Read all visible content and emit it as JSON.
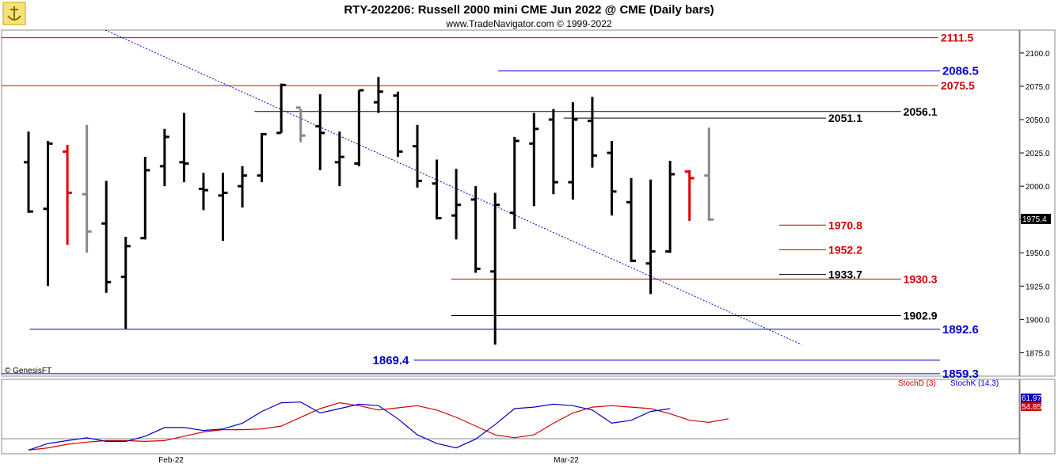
{
  "header": {
    "title": "RTY-202206:  Russell 2000 mini CME Jun 2022 @ CME  (Daily bars)",
    "subtitle": "www.TradeNavigator.com © 1999-2022",
    "watermark": "© GenesisFT"
  },
  "colors": {
    "bar": "#000000",
    "bar_last": "#e00000",
    "bar_gray": "#888888",
    "red_level": "#d40000",
    "blue_level": "#0000c8",
    "black_level": "#000000",
    "stoch_d": "#d40000",
    "stoch_k": "#0000c8",
    "trend": "#0000c8"
  },
  "chart_data": [
    {
      "type": "ohlc",
      "title": "RTY-202206:  Russell 2000 mini CME Jun 2022 @ CME  (Daily bars)",
      "y_axis": {
        "ticks": [
          "2100.0",
          "2075.0",
          "2050.0",
          "2025.0",
          "2000.0",
          "1975.0",
          "1950.0",
          "1925.0",
          "1900.0",
          "1875.0"
        ],
        "ylim": [
          1858,
          2116
        ],
        "last_price": "1975.4"
      },
      "x_axis": {
        "ticks": [
          "Feb-22",
          "Mar-22"
        ]
      },
      "bars": [
        {
          "o": 2018,
          "h": 2041,
          "l": 1980,
          "c": 1981
        },
        {
          "o": 1983,
          "h": 2034,
          "l": 1925,
          "c": 2032
        },
        {
          "o": 2026,
          "h": 2031,
          "l": 1956,
          "c": 1995
        },
        {
          "o": 1994,
          "h": 2046,
          "l": 1950,
          "c": 1966
        },
        {
          "o": 1972,
          "h": 2004,
          "l": 1920,
          "c": 1928
        },
        {
          "o": 1932,
          "h": 1962,
          "l": 1893,
          "c": 1955
        },
        {
          "o": 1961,
          "h": 2022,
          "l": 1960,
          "c": 2012
        },
        {
          "o": 2015,
          "h": 2043,
          "l": 2000,
          "c": 2037
        },
        {
          "o": 2018,
          "h": 2055,
          "l": 2003,
          "c": 2017
        },
        {
          "o": 1998,
          "h": 2010,
          "l": 1982,
          "c": 1997
        },
        {
          "o": 1993,
          "h": 2010,
          "l": 1959,
          "c": 1995
        },
        {
          "o": 2000,
          "h": 2015,
          "l": 1984,
          "c": 2008
        },
        {
          "o": 2008,
          "h": 2040,
          "l": 2003,
          "c": 2039
        },
        {
          "o": 2040,
          "h": 2077,
          "l": 2040,
          "c": 2076
        },
        {
          "o": 2059,
          "h": 2058,
          "l": 2033,
          "c": 2038
        },
        {
          "o": 2045,
          "h": 2069,
          "l": 2012,
          "c": 2040
        },
        {
          "o": 2018,
          "h": 2041,
          "l": 2000,
          "c": 2022
        },
        {
          "o": 2017,
          "h": 2072,
          "l": 2015,
          "c": 2072
        },
        {
          "o": 2063,
          "h": 2082,
          "l": 2055,
          "c": 2071
        },
        {
          "o": 2068,
          "h": 2071,
          "l": 2022,
          "c": 2026
        },
        {
          "o": 2030,
          "h": 2046,
          "l": 1999,
          "c": 2004
        },
        {
          "o": 2002,
          "h": 2020,
          "l": 1975,
          "c": 1976
        },
        {
          "o": 1978,
          "h": 2013,
          "l": 1960,
          "c": 1986
        },
        {
          "o": 1990,
          "h": 2000,
          "l": 1935,
          "c": 1938
        },
        {
          "o": 1936,
          "h": 1995,
          "l": 1881,
          "c": 1986
        },
        {
          "o": 1980,
          "h": 2037,
          "l": 1968,
          "c": 2034
        },
        {
          "o": 2032,
          "h": 2055,
          "l": 1985,
          "c": 2043
        },
        {
          "o": 2050,
          "h": 2058,
          "l": 1994,
          "c": 2003
        },
        {
          "o": 2003,
          "h": 2063,
          "l": 1990,
          "c": 2050
        },
        {
          "o": 2049,
          "h": 2067,
          "l": 2014,
          "c": 2023
        },
        {
          "o": 2025,
          "h": 2034,
          "l": 1978,
          "c": 1996
        },
        {
          "o": 1988,
          "h": 2006,
          "l": 1943,
          "c": 1944
        },
        {
          "o": 1942,
          "h": 2005,
          "l": 1919,
          "c": 1951
        },
        {
          "o": 1951,
          "h": 2019,
          "l": 1950,
          "c": 2009
        },
        {
          "o": 2011,
          "h": 2012,
          "l": 1974,
          "c": 2006
        },
        {
          "o": 2008,
          "h": 2044,
          "l": 1974,
          "c": 1975
        }
      ],
      "levels": [
        {
          "value": 2111.5,
          "label": "2111.5",
          "color": "red",
          "x0": 0,
          "x1": 1
        },
        {
          "value": 2086.5,
          "label": "2086.5",
          "color": "blue",
          "x0": 0.53,
          "x1": 1.1
        },
        {
          "value": 2075.5,
          "label": "2075.5",
          "color": "red",
          "x0": 0,
          "x1": 1
        },
        {
          "value": 2056.1,
          "label": "2056.1",
          "color": "black",
          "x0": 0.27,
          "x1": 0.96
        },
        {
          "value": 2051.1,
          "label": "2051.1",
          "color": "black",
          "x0": 0.6,
          "x1": 0.88
        },
        {
          "value": 1970.8,
          "label": "1970.8",
          "color": "red",
          "x0": 0.83,
          "x1": 0.88
        },
        {
          "value": 1952.2,
          "label": "1952.2",
          "color": "red",
          "x0": 0.83,
          "x1": 0.88
        },
        {
          "value": 1933.7,
          "label": "1933.7",
          "color": "black",
          "x0": 0.83,
          "x1": 0.88
        },
        {
          "value": 1930.3,
          "label": "1930.3",
          "color": "red",
          "x0": 0.48,
          "x1": 0.96
        },
        {
          "value": 1902.9,
          "label": "1902.9",
          "color": "black",
          "x0": 0.48,
          "x1": 0.96
        },
        {
          "value": 1892.6,
          "label": "1892.6",
          "color": "blue",
          "x0": 0.03,
          "x1": 1.1
        },
        {
          "value": 1869.4,
          "label": "1869.4",
          "color": "blue",
          "x0": 0.44,
          "x1": 1.1
        },
        {
          "value": 1859.3,
          "label": "1859.3",
          "color": "blue",
          "x0": 0,
          "x1": 1.1
        }
      ]
    },
    {
      "type": "line",
      "title": "StochD (3)  StochK (14,3)",
      "series": [
        {
          "name": "StochD (3)",
          "color": "red",
          "values": [
            5,
            8,
            13,
            16,
            18,
            18,
            17,
            18,
            24,
            30,
            33,
            33,
            34,
            38,
            50,
            62,
            70,
            66,
            60,
            63,
            66,
            60,
            50,
            38,
            26,
            22,
            26,
            42,
            56,
            64,
            66,
            64,
            62,
            55,
            46,
            43,
            48
          ]
        },
        {
          "name": "StochK (14,3)",
          "color": "blue",
          "values": [
            5,
            14,
            18,
            22,
            17,
            17,
            24,
            36,
            36,
            32,
            34,
            42,
            58,
            70,
            71,
            56,
            62,
            68,
            66,
            48,
            26,
            14,
            8,
            20,
            40,
            62,
            64,
            68,
            66,
            60,
            42,
            46,
            58,
            62
          ]
        },
        {
          "name": "",
          "color": "red",
          "values": []
        }
      ],
      "last_values": [
        "61.97",
        "54.85"
      ],
      "ylim": [
        0,
        100
      ]
    }
  ]
}
